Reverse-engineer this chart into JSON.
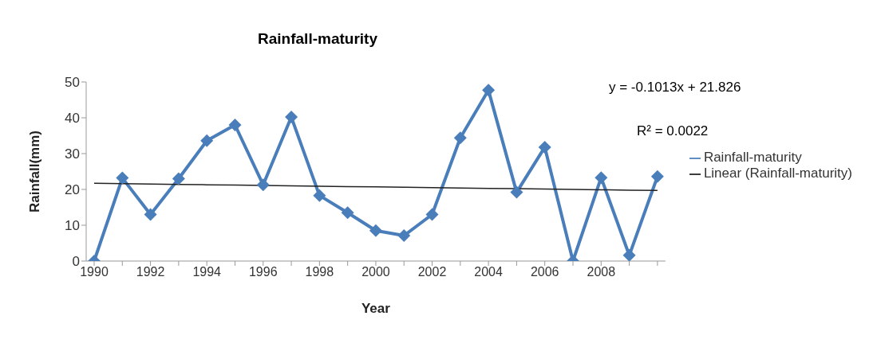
{
  "chart_data": {
    "type": "line",
    "title": "Rainfall-maturity",
    "xlabel": "Year",
    "ylabel": "Rainfall(mm)",
    "categories": [
      "1990",
      null,
      "1992",
      null,
      "1994",
      null,
      "1996",
      null,
      "1998",
      null,
      "2000",
      null,
      "2002",
      null,
      "2004",
      null,
      "2006",
      null,
      "2008",
      null,
      null
    ],
    "series": [
      {
        "name": "Rainfall-maturity",
        "color": "#4a7ebb",
        "marker": "diamond",
        "values": [
          0,
          23.2,
          13,
          23,
          33.6,
          38,
          21.3,
          40.2,
          18.3,
          13.5,
          8.5,
          7.1,
          13,
          34.4,
          47.7,
          19.2,
          31.8,
          0,
          23.3,
          1.6,
          23.6
        ]
      },
      {
        "name": "Linear (Rainfall-maturity)",
        "color": "#222222",
        "marker": "none",
        "values": [
          21.7,
          21.6,
          21.5,
          21.4,
          21.3,
          21.2,
          21.1,
          21,
          20.9,
          20.8,
          20.7,
          20.6,
          20.5,
          20.4,
          20.3,
          20.2,
          20.1,
          20,
          19.9,
          19.8,
          19.7
        ]
      }
    ],
    "ylim": [
      0,
      50
    ],
    "yticks": [
      0,
      10,
      20,
      30,
      40,
      50
    ],
    "grid": false,
    "legend": "right",
    "annotations": [
      "y = -0.1013x + 21.826",
      "R² = 0.0022"
    ]
  }
}
